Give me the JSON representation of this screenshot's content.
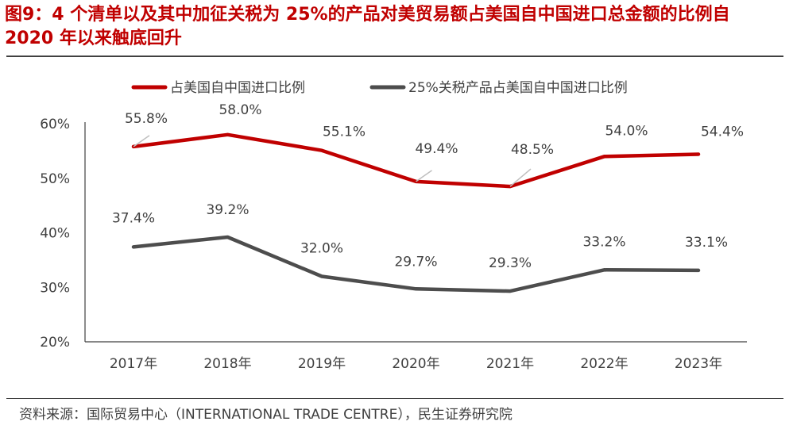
{
  "header": {
    "title": "图9：4 个清单以及其中加征关税为 25%的产品对美贸易额占美国自中国进口总金额的比例自 2020 年以来触底回升"
  },
  "footer": {
    "source": "资料来源：国际贸易中心（INTERNATIONAL TRADE CENTRE），民生证券研究院"
  },
  "chart_data": {
    "type": "line",
    "title": "",
    "categories": [
      "2017年",
      "2018年",
      "2019年",
      "2020年",
      "2021年",
      "2022年",
      "2023年"
    ],
    "ylim": [
      20,
      60
    ],
    "yticks": [
      20,
      30,
      40,
      50,
      60
    ],
    "ytick_labels": [
      "20%",
      "30%",
      "40%",
      "50%",
      "60%"
    ],
    "legend_position": "top",
    "series": [
      {
        "name": "占美国自中国进口比例",
        "color": "#c00000",
        "values": [
          55.8,
          58.0,
          55.1,
          49.4,
          48.5,
          54.0,
          54.4
        ],
        "labels": [
          "55.8%",
          "58.0%",
          "55.1%",
          "49.4%",
          "48.5%",
          "54.0%",
          "54.4%"
        ]
      },
      {
        "name": "25%关税产品占美国自中国进口比例",
        "color": "#4d4d4d",
        "values": [
          37.4,
          39.2,
          32.0,
          29.7,
          29.3,
          33.2,
          33.1
        ],
        "labels": [
          "37.4%",
          "39.2%",
          "32.0%",
          "29.7%",
          "29.3%",
          "33.2%",
          "33.1%"
        ]
      }
    ]
  }
}
